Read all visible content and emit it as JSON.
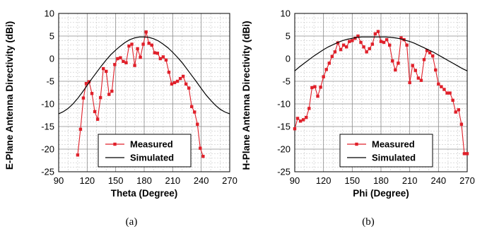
{
  "colors": {
    "measured": "#e0202a",
    "simulated": "#000000",
    "grid_minor": "#c8c8c8",
    "grid_major": "#8a8a8a"
  },
  "chart_data": [
    {
      "type": "line",
      "caption": "(a)",
      "xlabel": "Theta (Degree)",
      "ylabel": "E-Plane Antenna Directivity (dBi)",
      "xlim": [
        90,
        270
      ],
      "ylim": [
        -25,
        10
      ],
      "xticks": [
        90,
        120,
        150,
        180,
        210,
        240,
        270
      ],
      "yticks": [
        10,
        5,
        0,
        -5,
        -10,
        -15,
        -20,
        -25
      ],
      "grid": true,
      "legend": {
        "position": "bottom-center",
        "entries": [
          "Measured",
          "Simulated"
        ]
      },
      "series": [
        {
          "name": "Measured",
          "marker": "square",
          "x": [
            110,
            113,
            116,
            119,
            122,
            125,
            128,
            131,
            134,
            137,
            140,
            143,
            146,
            149,
            152,
            155,
            158,
            161,
            164,
            167,
            170,
            173,
            176,
            179,
            182,
            185,
            188,
            191,
            194,
            197,
            200,
            203,
            206,
            209,
            212,
            215,
            218,
            221,
            224,
            227,
            230,
            233,
            236,
            239,
            242
          ],
          "y": [
            -21.3,
            -15.6,
            -8.7,
            -5.5,
            -5.1,
            -7.7,
            -11.7,
            -13.4,
            -8.6,
            -2.2,
            -2.8,
            -7.9,
            -7.2,
            -1.3,
            0.0,
            0.2,
            -0.6,
            -0.9,
            2.8,
            3.2,
            -1.5,
            2.2,
            0.3,
            3.2,
            5.9,
            3.4,
            3.0,
            1.3,
            1.2,
            0.0,
            0.4,
            -0.3,
            -3.0,
            -5.6,
            -5.3,
            -5.0,
            -4.4,
            -3.9,
            -5.6,
            -6.5,
            -10.6,
            -11.8,
            -14.5,
            -19.8,
            -21.6
          ]
        },
        {
          "name": "Simulated",
          "marker": "none",
          "x": [
            90,
            95,
            100,
            105,
            110,
            115,
            120,
            125,
            130,
            135,
            140,
            145,
            150,
            155,
            160,
            165,
            170,
            175,
            180,
            185,
            190,
            195,
            200,
            205,
            210,
            215,
            220,
            225,
            230,
            235,
            240,
            245,
            250,
            255,
            260,
            265,
            270
          ],
          "y": [
            -12.2,
            -11.7,
            -11.0,
            -10.0,
            -8.8,
            -7.4,
            -5.9,
            -4.4,
            -3.0,
            -1.6,
            -0.3,
            0.9,
            1.9,
            2.8,
            3.6,
            4.2,
            4.6,
            4.8,
            4.8,
            4.7,
            4.4,
            3.9,
            3.2,
            2.4,
            1.4,
            0.3,
            -0.9,
            -2.3,
            -3.7,
            -5.1,
            -6.6,
            -8.0,
            -9.2,
            -10.3,
            -11.2,
            -11.8,
            -12.2
          ]
        }
      ]
    },
    {
      "type": "line",
      "caption": "(b)",
      "xlabel": "Phi (Degree)",
      "ylabel": "H-Plane Antenna Directivity (dBi)",
      "xlim": [
        90,
        270
      ],
      "ylim": [
        -25,
        10
      ],
      "xticks": [
        90,
        120,
        150,
        180,
        210,
        240,
        270
      ],
      "yticks": [
        10,
        5,
        0,
        -5,
        -10,
        -15,
        -20,
        -25
      ],
      "grid": true,
      "legend": {
        "position": "bottom-center",
        "entries": [
          "Measured",
          "Simulated"
        ]
      },
      "series": [
        {
          "name": "Measured",
          "marker": "square",
          "x": [
            90,
            93,
            96,
            99,
            102,
            105,
            108,
            111,
            114,
            117,
            120,
            123,
            126,
            129,
            132,
            135,
            138,
            141,
            144,
            147,
            150,
            153,
            156,
            159,
            162,
            165,
            168,
            171,
            174,
            177,
            180,
            183,
            186,
            189,
            192,
            195,
            198,
            201,
            204,
            207,
            210,
            213,
            216,
            219,
            222,
            225,
            228,
            231,
            234,
            237,
            240,
            243,
            246,
            249,
            252,
            255,
            258,
            261,
            264,
            267,
            270
          ],
          "y": [
            -15.5,
            -13.2,
            -13.8,
            -13.5,
            -13.0,
            -11.0,
            -6.4,
            -6.2,
            -8.3,
            -6.3,
            -4.0,
            -2.4,
            -1.0,
            0.5,
            1.5,
            3.5,
            2.0,
            3.0,
            2.6,
            3.8,
            4.0,
            4.5,
            5.0,
            3.6,
            2.6,
            1.5,
            2.2,
            3.2,
            5.5,
            6.0,
            3.8,
            3.6,
            4.2,
            3.0,
            -0.5,
            -2.5,
            -1.0,
            4.6,
            4.2,
            3.0,
            -5.3,
            -1.5,
            -2.6,
            -4.3,
            -4.8,
            -0.2,
            1.8,
            1.3,
            0.6,
            -2.5,
            -5.6,
            -6.2,
            -6.8,
            -7.6,
            -7.6,
            -9.2,
            -11.8,
            -11.3,
            -14.5,
            -21.0,
            -21.0
          ]
        },
        {
          "name": "Simulated",
          "marker": "none",
          "x": [
            90,
            95,
            100,
            105,
            110,
            115,
            120,
            125,
            130,
            135,
            140,
            145,
            150,
            155,
            160,
            165,
            170,
            175,
            180,
            185,
            190,
            195,
            200,
            205,
            210,
            215,
            220,
            225,
            230,
            235,
            240,
            245,
            250,
            255,
            260,
            265,
            270
          ],
          "y": [
            -2.7,
            -1.8,
            -1.0,
            -0.2,
            0.6,
            1.3,
            2.0,
            2.6,
            3.1,
            3.6,
            4.0,
            4.3,
            4.5,
            4.7,
            4.8,
            4.8,
            4.8,
            4.8,
            4.8,
            4.8,
            4.7,
            4.6,
            4.4,
            4.1,
            3.8,
            3.4,
            2.9,
            2.4,
            1.9,
            1.4,
            0.8,
            0.2,
            -0.4,
            -1.0,
            -1.6,
            -2.2,
            -2.7
          ]
        }
      ]
    }
  ]
}
